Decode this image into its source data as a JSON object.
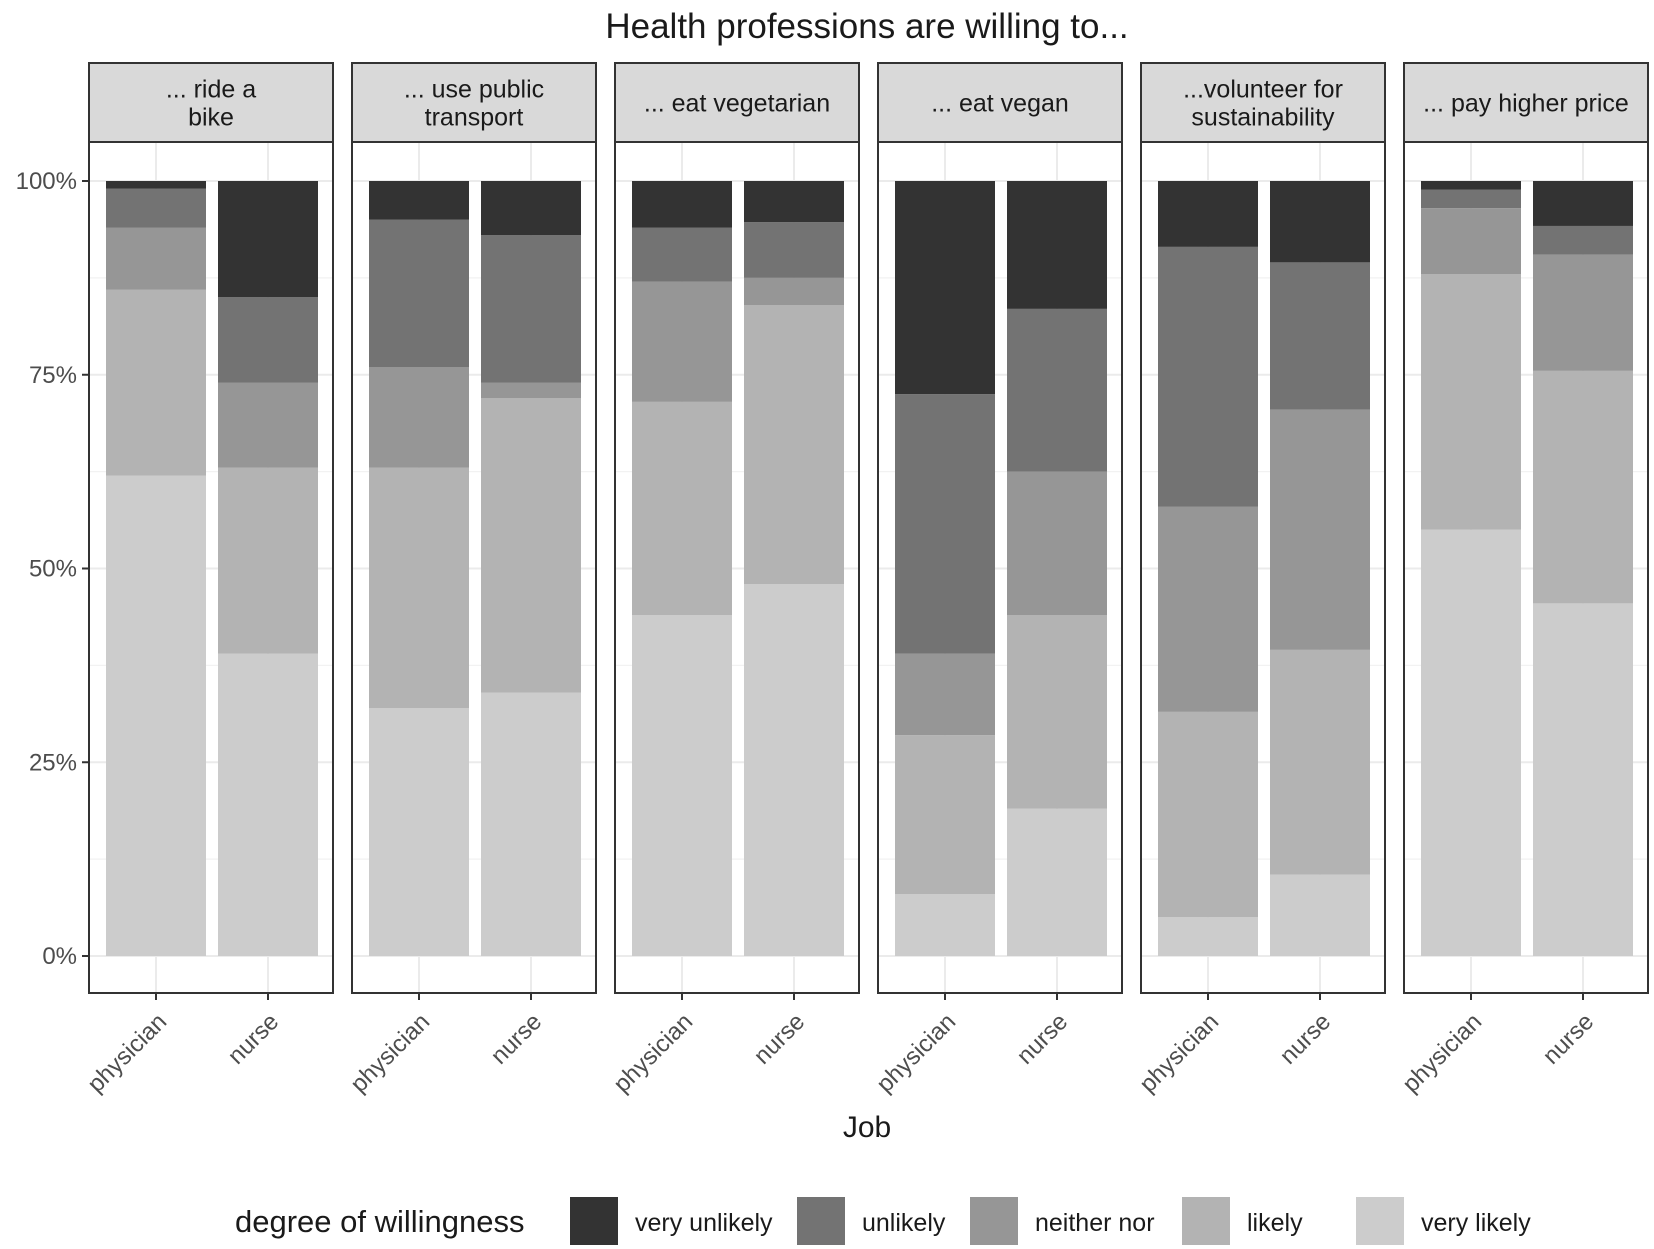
{
  "chart_data": {
    "type": "bar",
    "stacked": true,
    "title": "Health professions are willing to...",
    "xlabel": "Job",
    "ylabel": "",
    "ylim": [
      0,
      1
    ],
    "yticks": [
      {
        "value": 0,
        "label": "0%"
      },
      {
        "value": 0.25,
        "label": "25%"
      },
      {
        "value": 0.5,
        "label": "50%"
      },
      {
        "value": 0.75,
        "label": "75%"
      },
      {
        "value": 1,
        "label": "100%"
      }
    ],
    "categories": [
      "physician",
      "nurse"
    ],
    "legend": {
      "title": "degree of willingness",
      "position": "bottom",
      "entries": [
        {
          "name": "very unlikely",
          "color": "#333333"
        },
        {
          "name": "unlikely",
          "color": "#737373"
        },
        {
          "name": "neither nor",
          "color": "#969696"
        },
        {
          "name": "likely",
          "color": "#b3b3b3"
        },
        {
          "name": "very likely",
          "color": "#cccccc"
        }
      ]
    },
    "stack_order_bottom_to_top": [
      "very likely",
      "likely",
      "neither nor",
      "unlikely",
      "very unlikely"
    ],
    "panels": [
      {
        "title": "... ride a\nbike",
        "values": {
          "physician": {
            "very likely": 0.62,
            "likely": 0.24,
            "neither nor": 0.08,
            "unlikely": 0.05,
            "very unlikely": 0.01
          },
          "nurse": {
            "very likely": 0.39,
            "likely": 0.24,
            "neither nor": 0.11,
            "unlikely": 0.11,
            "very unlikely": 0.15
          }
        }
      },
      {
        "title": "... use public\ntransport",
        "values": {
          "physician": {
            "very likely": 0.32,
            "likely": 0.31,
            "neither nor": 0.13,
            "unlikely": 0.19,
            "very unlikely": 0.05
          },
          "nurse": {
            "very likely": 0.34,
            "likely": 0.38,
            "neither nor": 0.02,
            "unlikely": 0.19,
            "very unlikely": 0.07
          }
        }
      },
      {
        "title": "... eat vegetarian",
        "values": {
          "physician": {
            "very likely": 0.44,
            "likely": 0.275,
            "neither nor": 0.155,
            "unlikely": 0.07,
            "very unlikely": 0.06
          },
          "nurse": {
            "very likely": 0.48,
            "likely": 0.36,
            "neither nor": 0.035,
            "unlikely": 0.072,
            "very unlikely": 0.053
          }
        }
      },
      {
        "title": "... eat vegan",
        "values": {
          "physician": {
            "very likely": 0.08,
            "likely": 0.205,
            "neither nor": 0.105,
            "unlikely": 0.335,
            "very unlikely": 0.275
          },
          "nurse": {
            "very likely": 0.19,
            "likely": 0.25,
            "neither nor": 0.185,
            "unlikely": 0.21,
            "very unlikely": 0.165
          }
        }
      },
      {
        "title": "...volunteer for\nsustainability",
        "values": {
          "physician": {
            "very likely": 0.05,
            "likely": 0.265,
            "neither nor": 0.265,
            "unlikely": 0.335,
            "very unlikely": 0.085
          },
          "nurse": {
            "very likely": 0.105,
            "likely": 0.29,
            "neither nor": 0.31,
            "unlikely": 0.19,
            "very unlikely": 0.105
          }
        }
      },
      {
        "title": "... pay higher price",
        "values": {
          "physician": {
            "very likely": 0.55,
            "likely": 0.33,
            "neither nor": 0.085,
            "unlikely": 0.024,
            "very unlikely": 0.011
          },
          "nurse": {
            "very likely": 0.455,
            "likely": 0.3,
            "neither nor": 0.15,
            "unlikely": 0.037,
            "very unlikely": 0.058
          }
        }
      }
    ]
  }
}
